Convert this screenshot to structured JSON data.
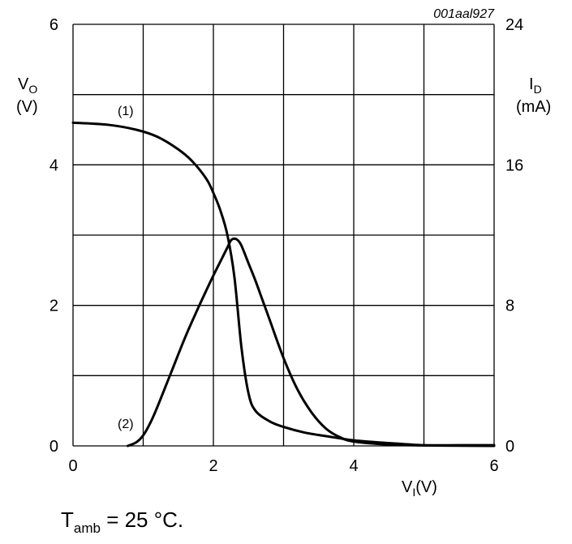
{
  "chart_data": {
    "type": "line",
    "code": "001aal927",
    "xlabel": {
      "main": "V",
      "sub": "I",
      "unit": "(V)"
    },
    "ylabel_left": {
      "main": "V",
      "sub": "O",
      "unit": "(V)"
    },
    "ylabel_right": {
      "main": "I",
      "sub": "D",
      "unit": "(mA)"
    },
    "xlim": [
      0,
      6
    ],
    "ylim_left": [
      0,
      6
    ],
    "ylim_right": [
      0,
      24
    ],
    "xticks": [
      "0",
      "2",
      "4",
      "6"
    ],
    "yticks_left": [
      "0",
      "2",
      "4",
      "6"
    ],
    "yticks_right": [
      "0",
      "8",
      "16",
      "24"
    ],
    "grid": true,
    "series": [
      {
        "name": "(1)",
        "axis": "left",
        "x": [
          0,
          0.5,
          0.9,
          1.2,
          1.5,
          1.7,
          1.9,
          2.0,
          2.1,
          2.2,
          2.3,
          2.4,
          2.5,
          2.6,
          2.8,
          3.0,
          3.3,
          3.6,
          4.0,
          4.5,
          5.0,
          5.5,
          6.0
        ],
        "y": [
          4.6,
          4.57,
          4.5,
          4.4,
          4.22,
          4.05,
          3.8,
          3.6,
          3.35,
          3.0,
          2.4,
          1.4,
          0.75,
          0.5,
          0.35,
          0.27,
          0.19,
          0.14,
          0.08,
          0.04,
          0.01,
          0.01,
          0.01
        ]
      },
      {
        "name": "(2)",
        "axis": "right",
        "x": [
          0.78,
          0.9,
          1.0,
          1.1,
          1.2,
          1.4,
          1.6,
          1.8,
          2.0,
          2.1,
          2.2,
          2.25,
          2.3,
          2.35,
          2.4,
          2.5,
          2.6,
          2.7,
          2.8,
          3.0,
          3.2,
          3.4,
          3.6,
          3.8,
          4.0,
          4.5,
          5.0,
          5.5,
          6.0
        ],
        "y": [
          0,
          0.2,
          0.6,
          1.3,
          2.2,
          4.2,
          6.2,
          8.0,
          9.7,
          10.5,
          11.3,
          11.7,
          11.8,
          11.7,
          11.4,
          10.4,
          9.4,
          8.3,
          7.2,
          5.0,
          3.2,
          1.9,
          1.0,
          0.5,
          0.25,
          0.08,
          0.03,
          0.01,
          0.0
        ]
      }
    ]
  },
  "footnote": {
    "main": "T",
    "sub": "amb",
    "rest": " = 25 °C."
  }
}
